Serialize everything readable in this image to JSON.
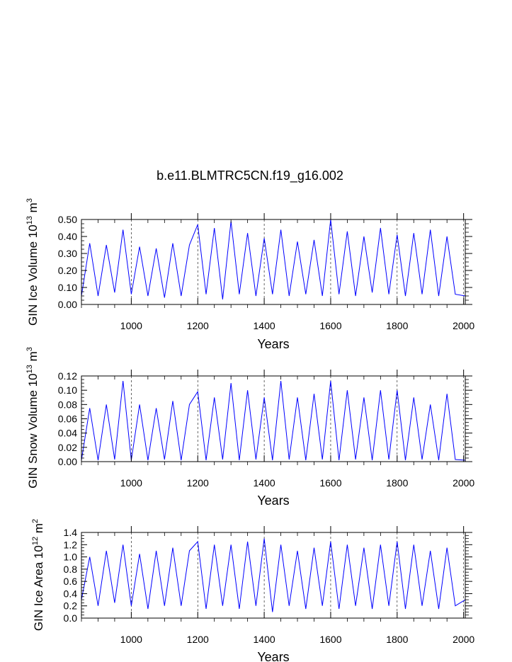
{
  "figure": {
    "title": "b.e11.BLMTRC5CN.f19_g16.002"
  },
  "chart_data": [
    {
      "type": "line",
      "title": "",
      "xlabel": "Years",
      "ylabel_main": "GIN Ice Volume 10",
      "ylabel_exp": "13",
      "ylabel_unit": " m",
      "ylabel_unit_exp": "3",
      "xlim": [
        850,
        2005
      ],
      "ylim": [
        0,
        0.5
      ],
      "xticks": [
        1000,
        1200,
        1400,
        1600,
        1800,
        2000
      ],
      "xtick_labels": [
        "1000",
        "1200",
        "1400",
        "1600",
        "1800",
        "2000"
      ],
      "yticks": [
        0,
        0.1,
        0.2,
        0.3,
        0.4,
        0.5
      ],
      "ytick_labels": [
        "0.00",
        "0.10",
        "0.20",
        "0.30",
        "0.40",
        "0.50"
      ],
      "grid": "vertical dashed at major x ticks",
      "line_color": "#0000ff",
      "x": [
        850,
        875,
        900,
        925,
        950,
        975,
        1000,
        1025,
        1050,
        1075,
        1100,
        1125,
        1150,
        1175,
        1200,
        1225,
        1250,
        1275,
        1300,
        1325,
        1350,
        1375,
        1400,
        1425,
        1450,
        1475,
        1500,
        1525,
        1550,
        1575,
        1600,
        1625,
        1650,
        1675,
        1700,
        1725,
        1750,
        1775,
        1800,
        1825,
        1850,
        1875,
        1900,
        1925,
        1950,
        1975,
        2005
      ],
      "series": [
        {
          "values": [
            0.05,
            0.36,
            0.05,
            0.35,
            0.07,
            0.44,
            0.06,
            0.34,
            0.05,
            0.33,
            0.04,
            0.36,
            0.05,
            0.35,
            0.47,
            0.06,
            0.45,
            0.03,
            0.49,
            0.06,
            0.42,
            0.05,
            0.39,
            0.06,
            0.44,
            0.05,
            0.37,
            0.06,
            0.38,
            0.05,
            0.5,
            0.06,
            0.43,
            0.05,
            0.4,
            0.07,
            0.45,
            0.06,
            0.41,
            0.05,
            0.42,
            0.06,
            0.44,
            0.05,
            0.4,
            0.06,
            0.05
          ]
        }
      ]
    },
    {
      "type": "line",
      "title": "",
      "xlabel": "Years",
      "ylabel_main": "GIN Snow Volume 10",
      "ylabel_exp": "13",
      "ylabel_unit": " m",
      "ylabel_unit_exp": "3",
      "xlim": [
        850,
        2005
      ],
      "ylim": [
        0,
        0.12
      ],
      "xticks": [
        1000,
        1200,
        1400,
        1600,
        1800,
        2000
      ],
      "xtick_labels": [
        "1000",
        "1200",
        "1400",
        "1600",
        "1800",
        "2000"
      ],
      "yticks": [
        0,
        0.02,
        0.04,
        0.06,
        0.08,
        0.1,
        0.12
      ],
      "ytick_labels": [
        "0.00",
        "0.02",
        "0.04",
        "0.06",
        "0.08",
        "0.10",
        "0.12"
      ],
      "grid": "vertical dashed at major x ticks",
      "line_color": "#0000ff",
      "x": [
        850,
        875,
        900,
        925,
        950,
        975,
        1000,
        1025,
        1050,
        1075,
        1100,
        1125,
        1150,
        1175,
        1200,
        1225,
        1250,
        1275,
        1300,
        1325,
        1350,
        1375,
        1400,
        1425,
        1450,
        1475,
        1500,
        1525,
        1550,
        1575,
        1600,
        1625,
        1650,
        1675,
        1700,
        1725,
        1750,
        1775,
        1800,
        1825,
        1850,
        1875,
        1900,
        1925,
        1950,
        1975,
        2005
      ],
      "series": [
        {
          "values": [
            0.002,
            0.075,
            0.002,
            0.08,
            0.003,
            0.113,
            0.002,
            0.08,
            0.002,
            0.075,
            0.003,
            0.085,
            0.002,
            0.08,
            0.098,
            0.002,
            0.09,
            0.003,
            0.11,
            0.002,
            0.1,
            0.003,
            0.09,
            0.002,
            0.113,
            0.003,
            0.09,
            0.002,
            0.095,
            0.003,
            0.113,
            0.002,
            0.1,
            0.003,
            0.09,
            0.002,
            0.1,
            0.003,
            0.1,
            0.002,
            0.09,
            0.003,
            0.08,
            0.002,
            0.095,
            0.003,
            0.002
          ]
        }
      ]
    },
    {
      "type": "line",
      "title": "",
      "xlabel": "Years",
      "ylabel_main": "GIN Ice Area 10",
      "ylabel_exp": "12",
      "ylabel_unit": " m",
      "ylabel_unit_exp": "2",
      "xlim": [
        850,
        2005
      ],
      "ylim": [
        0,
        1.4
      ],
      "xticks": [
        1000,
        1200,
        1400,
        1600,
        1800,
        2000
      ],
      "xtick_labels": [
        "1000",
        "1200",
        "1400",
        "1600",
        "1800",
        "2000"
      ],
      "yticks": [
        0,
        0.2,
        0.4,
        0.6,
        0.8,
        1,
        1.2,
        1.4
      ],
      "ytick_labels": [
        "0.0",
        "0.2",
        "0.4",
        "0.6",
        "0.8",
        "1.0",
        "1.2",
        "1.4"
      ],
      "grid": "vertical dashed at major x ticks",
      "line_color": "#0000ff",
      "x": [
        850,
        875,
        900,
        925,
        950,
        975,
        1000,
        1025,
        1050,
        1075,
        1100,
        1125,
        1150,
        1175,
        1200,
        1225,
        1250,
        1275,
        1300,
        1325,
        1350,
        1375,
        1400,
        1425,
        1450,
        1475,
        1500,
        1525,
        1550,
        1575,
        1600,
        1625,
        1650,
        1675,
        1700,
        1725,
        1750,
        1775,
        1800,
        1825,
        1850,
        1875,
        1900,
        1925,
        1950,
        1975,
        2005
      ],
      "series": [
        {
          "values": [
            0.3,
            1.0,
            0.2,
            1.1,
            0.25,
            1.2,
            0.2,
            1.05,
            0.15,
            1.1,
            0.2,
            1.15,
            0.2,
            1.1,
            1.25,
            0.15,
            1.2,
            0.2,
            1.2,
            0.15,
            1.25,
            0.2,
            1.3,
            0.1,
            1.2,
            0.2,
            1.1,
            0.15,
            1.15,
            0.2,
            1.25,
            0.15,
            1.2,
            0.2,
            1.15,
            0.15,
            1.2,
            0.2,
            1.25,
            0.15,
            1.2,
            0.2,
            1.1,
            0.15,
            1.15,
            0.2,
            0.3
          ]
        }
      ]
    }
  ]
}
